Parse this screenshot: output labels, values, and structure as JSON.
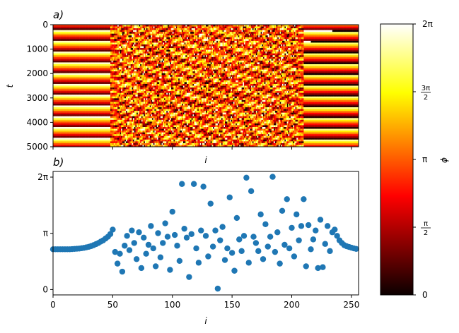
{
  "chart_data": [
    {
      "panel_label": "a)",
      "type": "heatmap",
      "xlabel": "i",
      "ylabel": "t",
      "xlim": [
        0,
        256
      ],
      "ylim": [
        5000,
        0
      ],
      "y_ticks": [
        "0",
        "1000",
        "2000",
        "3000",
        "4000",
        "5000"
      ],
      "y_tick_values": [
        0,
        1000,
        2000,
        3000,
        4000,
        5000
      ],
      "x_tick_values": [
        0,
        50,
        100,
        150,
        200,
        250
      ],
      "colormap": "hot",
      "value_range": [
        0,
        6.283
      ],
      "description_of_pattern": {
        "ordered_regions_i": [
          [
            0,
            48
          ],
          [
            210,
            256
          ]
        ],
        "chaotic_region_i": [
          48,
          210
        ],
        "ordered_phase": 2.7
      }
    },
    {
      "panel_label": "b)",
      "type": "scatter",
      "xlabel": "i",
      "ylabel": "",
      "xlim": [
        0,
        256
      ],
      "ylim": [
        -0.3,
        6.6
      ],
      "x_ticks": [
        "0",
        "50",
        "100",
        "150",
        "200",
        "250"
      ],
      "x_tick_values": [
        0,
        50,
        100,
        150,
        200,
        250
      ],
      "y_ticks": [
        "0",
        "π",
        "2π"
      ],
      "y_tick_values": [
        0,
        3.1416,
        6.2832
      ],
      "marker_color": "#1f77b4",
      "series": [
        {
          "x": [
            0,
            2,
            4,
            6,
            8,
            10,
            12,
            14,
            16,
            18,
            20,
            22,
            24,
            26,
            28,
            30,
            32,
            34,
            36,
            38,
            40,
            42,
            44,
            46,
            48,
            50,
            52,
            54,
            56,
            58,
            60,
            62,
            64,
            66,
            68,
            70,
            72,
            74,
            76,
            78,
            80,
            82,
            84,
            86,
            88,
            90,
            92,
            94,
            96,
            98,
            100,
            102,
            104,
            106,
            108,
            110,
            112,
            114,
            116,
            118,
            120,
            122,
            124,
            126,
            128,
            130,
            132,
            134,
            136,
            138,
            140,
            142,
            144,
            146,
            148,
            150,
            152,
            154,
            156,
            158,
            160,
            162,
            164,
            166,
            168,
            170,
            172,
            174,
            176,
            178,
            180,
            182,
            184,
            186,
            188,
            190,
            192,
            194,
            196,
            198,
            200,
            202,
            204,
            206,
            208,
            210,
            212,
            214,
            216,
            218,
            220,
            222,
            224,
            226,
            228,
            230,
            232,
            234,
            236,
            238,
            240,
            242,
            244,
            246,
            248,
            250,
            252,
            254
          ],
          "y": [
            2.25,
            2.25,
            2.25,
            2.25,
            2.25,
            2.25,
            2.25,
            2.25,
            2.26,
            2.27,
            2.28,
            2.29,
            2.31,
            2.33,
            2.36,
            2.39,
            2.43,
            2.48,
            2.54,
            2.6,
            2.68,
            2.75,
            2.85,
            2.95,
            3.1,
            3.35,
            2.1,
            1.45,
            2.0,
            1.0,
            2.45,
            3.0,
            2.2,
            3.3,
            2.6,
            1.7,
            3.2,
            1.2,
            2.9,
            2.0,
            2.5,
            3.55,
            2.3,
            1.3,
            3.15,
            1.8,
            2.6,
            3.7,
            2.95,
            1.1,
            4.35,
            3.05,
            2.45,
            1.6,
            5.9,
            3.4,
            2.9,
            0.7,
            3.1,
            5.9,
            2.3,
            1.5,
            3.3,
            5.75,
            3.0,
            1.85,
            4.8,
            2.4,
            3.3,
            0.05,
            2.75,
            3.5,
            1.65,
            2.3,
            5.15,
            2.05,
            1.05,
            4.0,
            2.8,
            2.15,
            3.0,
            6.25,
            1.5,
            5.5,
            2.95,
            2.6,
            2.15,
            4.2,
            1.7,
            3.65,
            2.4,
            2.95,
            6.3,
            2.1,
            3.2,
            1.45,
            4.4,
            2.5,
            5.05,
            2.3,
            3.45,
            1.85,
            4.2,
            2.75,
            3.55,
            5.05,
            1.3,
            3.6,
            2.25,
            2.8,
            3.3,
            1.2,
            3.9,
            1.25,
            2.55,
            3.55,
            2.15,
            3.2,
            3.35,
            3.0,
            2.75,
            2.6,
            2.48,
            2.42,
            2.38,
            2.34,
            2.3,
            2.27
          ]
        }
      ]
    }
  ],
  "colorbar": {
    "label": "ϕ",
    "range": [
      0,
      6.283
    ],
    "ticks": [
      "0",
      "π/2",
      "π",
      "3π/2",
      "2π"
    ],
    "tick_values": [
      0,
      1.5708,
      3.1416,
      4.7124,
      6.2832
    ]
  }
}
